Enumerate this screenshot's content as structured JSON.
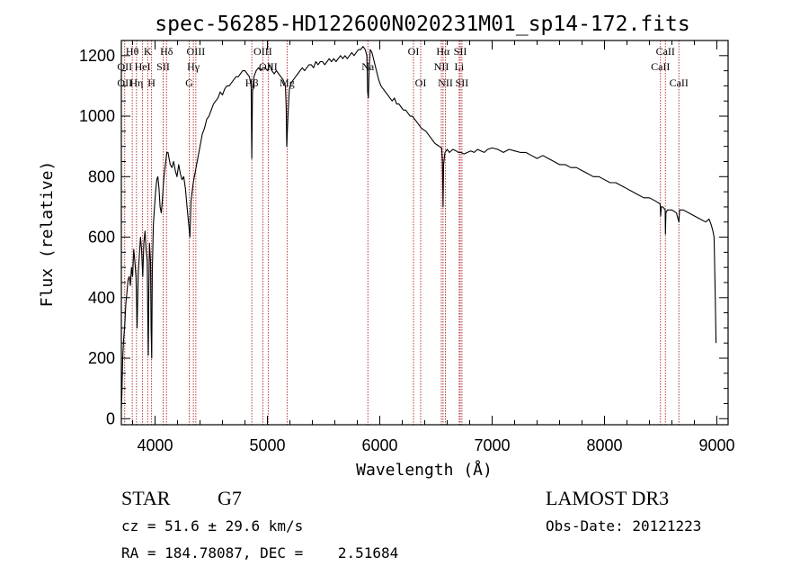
{
  "chart_data": {
    "type": "line",
    "title": "spec-56285-HD122600N020231M01_sp14-172.fits",
    "xlabel": "Wavelength (Å)",
    "ylabel": "Flux (relative)",
    "xlim": [
      3700,
      9100
    ],
    "ylim": [
      -20,
      1250
    ],
    "x_ticks": [
      4000,
      5000,
      6000,
      7000,
      8000,
      9000
    ],
    "y_ticks": [
      0,
      200,
      400,
      600,
      800,
      1000,
      1200
    ],
    "grid": false,
    "series": [
      {
        "color": "#000000",
        "points": [
          [
            3700,
            30
          ],
          [
            3705,
            80
          ],
          [
            3712,
            200
          ],
          [
            3720,
            260
          ],
          [
            3730,
            310
          ],
          [
            3740,
            380
          ],
          [
            3750,
            420
          ],
          [
            3760,
            460
          ],
          [
            3770,
            470
          ],
          [
            3780,
            440
          ],
          [
            3790,
            500
          ],
          [
            3800,
            470
          ],
          [
            3810,
            560
          ],
          [
            3820,
            520
          ],
          [
            3830,
            470
          ],
          [
            3840,
            300
          ],
          [
            3850,
            480
          ],
          [
            3860,
            540
          ],
          [
            3870,
            600
          ],
          [
            3880,
            560
          ],
          [
            3890,
            470
          ],
          [
            3900,
            580
          ],
          [
            3910,
            620
          ],
          [
            3920,
            560
          ],
          [
            3930,
            520
          ],
          [
            3935,
            350
          ],
          [
            3940,
            210
          ],
          [
            3945,
            420
          ],
          [
            3950,
            580
          ],
          [
            3960,
            520
          ],
          [
            3965,
            300
          ],
          [
            3970,
            200
          ],
          [
            3975,
            480
          ],
          [
            3985,
            640
          ],
          [
            3995,
            700
          ],
          [
            4005,
            750
          ],
          [
            4015,
            790
          ],
          [
            4025,
            800
          ],
          [
            4035,
            760
          ],
          [
            4045,
            700
          ],
          [
            4055,
            680
          ],
          [
            4065,
            720
          ],
          [
            4075,
            780
          ],
          [
            4085,
            820
          ],
          [
            4095,
            850
          ],
          [
            4105,
            880
          ],
          [
            4115,
            880
          ],
          [
            4125,
            860
          ],
          [
            4135,
            840
          ],
          [
            4150,
            830
          ],
          [
            4165,
            850
          ],
          [
            4180,
            820
          ],
          [
            4195,
            800
          ],
          [
            4210,
            840
          ],
          [
            4225,
            810
          ],
          [
            4240,
            790
          ],
          [
            4255,
            800
          ],
          [
            4270,
            760
          ],
          [
            4285,
            700
          ],
          [
            4300,
            640
          ],
          [
            4310,
            600
          ],
          [
            4320,
            720
          ],
          [
            4340,
            780
          ],
          [
            4360,
            820
          ],
          [
            4380,
            860
          ],
          [
            4400,
            900
          ],
          [
            4420,
            940
          ],
          [
            4440,
            960
          ],
          [
            4460,
            990
          ],
          [
            4480,
            1000
          ],
          [
            4500,
            1020
          ],
          [
            4520,
            1040
          ],
          [
            4540,
            1050
          ],
          [
            4560,
            1060
          ],
          [
            4580,
            1080
          ],
          [
            4600,
            1070
          ],
          [
            4620,
            1090
          ],
          [
            4640,
            1100
          ],
          [
            4660,
            1100
          ],
          [
            4680,
            1110
          ],
          [
            4700,
            1120
          ],
          [
            4720,
            1130
          ],
          [
            4740,
            1130
          ],
          [
            4760,
            1140
          ],
          [
            4780,
            1150
          ],
          [
            4800,
            1150
          ],
          [
            4820,
            1140
          ],
          [
            4840,
            1130
          ],
          [
            4855,
            1100
          ],
          [
            4861,
            860
          ],
          [
            4867,
            1080
          ],
          [
            4880,
            1130
          ],
          [
            4900,
            1150
          ],
          [
            4920,
            1160
          ],
          [
            4940,
            1150
          ],
          [
            4960,
            1160
          ],
          [
            4980,
            1160
          ],
          [
            5000,
            1150
          ],
          [
            5020,
            1170
          ],
          [
            5040,
            1150
          ],
          [
            5060,
            1140
          ],
          [
            5080,
            1150
          ],
          [
            5100,
            1140
          ],
          [
            5120,
            1130
          ],
          [
            5140,
            1120
          ],
          [
            5160,
            1100
          ],
          [
            5167,
            1030
          ],
          [
            5172,
            900
          ],
          [
            5178,
            960
          ],
          [
            5184,
            1010
          ],
          [
            5195,
            1090
          ],
          [
            5210,
            1110
          ],
          [
            5230,
            1120
          ],
          [
            5250,
            1130
          ],
          [
            5270,
            1140
          ],
          [
            5290,
            1150
          ],
          [
            5310,
            1160
          ],
          [
            5330,
            1150
          ],
          [
            5350,
            1160
          ],
          [
            5370,
            1170
          ],
          [
            5390,
            1170
          ],
          [
            5410,
            1160
          ],
          [
            5430,
            1180
          ],
          [
            5450,
            1170
          ],
          [
            5470,
            1180
          ],
          [
            5490,
            1180
          ],
          [
            5510,
            1170
          ],
          [
            5530,
            1180
          ],
          [
            5550,
            1190
          ],
          [
            5570,
            1180
          ],
          [
            5590,
            1190
          ],
          [
            5610,
            1180
          ],
          [
            5630,
            1190
          ],
          [
            5650,
            1200
          ],
          [
            5670,
            1190
          ],
          [
            5690,
            1200
          ],
          [
            5710,
            1190
          ],
          [
            5730,
            1200
          ],
          [
            5750,
            1210
          ],
          [
            5770,
            1200
          ],
          [
            5790,
            1210
          ],
          [
            5810,
            1220
          ],
          [
            5830,
            1220
          ],
          [
            5850,
            1230
          ],
          [
            5870,
            1220
          ],
          [
            5885,
            1200
          ],
          [
            5892,
            1080
          ],
          [
            5898,
            1060
          ],
          [
            5905,
            1150
          ],
          [
            5915,
            1220
          ],
          [
            5930,
            1210
          ],
          [
            5950,
            1180
          ],
          [
            5970,
            1150
          ],
          [
            5990,
            1120
          ],
          [
            6010,
            1100
          ],
          [
            6030,
            1090
          ],
          [
            6050,
            1080
          ],
          [
            6070,
            1070
          ],
          [
            6090,
            1060
          ],
          [
            6110,
            1050
          ],
          [
            6130,
            1060
          ],
          [
            6150,
            1040
          ],
          [
            6170,
            1040
          ],
          [
            6190,
            1030
          ],
          [
            6210,
            1020
          ],
          [
            6230,
            1020
          ],
          [
            6250,
            1010
          ],
          [
            6270,
            1000
          ],
          [
            6290,
            1000
          ],
          [
            6310,
            990
          ],
          [
            6330,
            980
          ],
          [
            6350,
            970
          ],
          [
            6370,
            960
          ],
          [
            6390,
            955
          ],
          [
            6410,
            950
          ],
          [
            6430,
            940
          ],
          [
            6450,
            930
          ],
          [
            6470,
            920
          ],
          [
            6490,
            910
          ],
          [
            6510,
            905
          ],
          [
            6530,
            900
          ],
          [
            6550,
            895
          ],
          [
            6558,
            850
          ],
          [
            6563,
            700
          ],
          [
            6568,
            840
          ],
          [
            6580,
            880
          ],
          [
            6600,
            890
          ],
          [
            6620,
            880
          ],
          [
            6650,
            890
          ],
          [
            6680,
            885
          ],
          [
            6700,
            880
          ],
          [
            6720,
            880
          ],
          [
            6750,
            875
          ],
          [
            6780,
            880
          ],
          [
            6810,
            885
          ],
          [
            6840,
            880
          ],
          [
            6870,
            890
          ],
          [
            6900,
            885
          ],
          [
            6930,
            880
          ],
          [
            6960,
            890
          ],
          [
            7000,
            895
          ],
          [
            7050,
            890
          ],
          [
            7100,
            880
          ],
          [
            7150,
            890
          ],
          [
            7200,
            885
          ],
          [
            7250,
            880
          ],
          [
            7300,
            880
          ],
          [
            7350,
            870
          ],
          [
            7400,
            860
          ],
          [
            7450,
            870
          ],
          [
            7500,
            860
          ],
          [
            7550,
            850
          ],
          [
            7600,
            840
          ],
          [
            7650,
            840
          ],
          [
            7700,
            830
          ],
          [
            7750,
            830
          ],
          [
            7800,
            820
          ],
          [
            7850,
            810
          ],
          [
            7900,
            800
          ],
          [
            7950,
            800
          ],
          [
            8000,
            790
          ],
          [
            8050,
            780
          ],
          [
            8100,
            780
          ],
          [
            8150,
            770
          ],
          [
            8200,
            760
          ],
          [
            8250,
            750
          ],
          [
            8300,
            740
          ],
          [
            8350,
            730
          ],
          [
            8400,
            730
          ],
          [
            8450,
            720
          ],
          [
            8495,
            710
          ],
          [
            8500,
            670
          ],
          [
            8505,
            700
          ],
          [
            8520,
            700
          ],
          [
            8540,
            690
          ],
          [
            8542,
            610
          ],
          [
            8546,
            680
          ],
          [
            8560,
            690
          ],
          [
            8600,
            690
          ],
          [
            8640,
            680
          ],
          [
            8662,
            650
          ],
          [
            8668,
            690
          ],
          [
            8700,
            690
          ],
          [
            8750,
            680
          ],
          [
            8800,
            670
          ],
          [
            8850,
            660
          ],
          [
            8900,
            650
          ],
          [
            8930,
            660
          ],
          [
            8950,
            640
          ],
          [
            8965,
            620
          ],
          [
            8975,
            600
          ],
          [
            8985,
            420
          ],
          [
            8993,
            250
          ]
        ]
      }
    ],
    "lines": [
      {
        "x": 3730,
        "labels": [
          "",
          "OII",
          "OII"
        ]
      },
      {
        "x": 3797,
        "labels": [
          "Hθ",
          "",
          ""
        ]
      },
      {
        "x": 3835,
        "labels": [
          "",
          "",
          "Hη"
        ]
      },
      {
        "x": 3889,
        "labels": [
          "",
          "HeI",
          ""
        ]
      },
      {
        "x": 3934,
        "labels": [
          "K",
          "",
          ""
        ]
      },
      {
        "x": 3969,
        "labels": [
          "",
          "",
          "H"
        ]
      },
      {
        "x": 4072,
        "labels": [
          "",
          "SII",
          ""
        ]
      },
      {
        "x": 4102,
        "labels": [
          "Hδ",
          "",
          ""
        ]
      },
      {
        "x": 4304,
        "labels": [
          "",
          "",
          "G"
        ]
      },
      {
        "x": 4341,
        "labels": [
          "",
          "Hγ",
          ""
        ]
      },
      {
        "x": 4363,
        "labels": [
          "OIII",
          "",
          ""
        ]
      },
      {
        "x": 4861,
        "labels": [
          "",
          "",
          "Hβ"
        ]
      },
      {
        "x": 4959,
        "labels": [
          "OIII",
          "",
          ""
        ]
      },
      {
        "x": 5007,
        "labels": [
          "",
          "OIII",
          ""
        ]
      },
      {
        "x": 5175,
        "labels": [
          "",
          "",
          "Mg"
        ]
      },
      {
        "x": 5894,
        "labels": [
          "",
          "Na",
          ""
        ]
      },
      {
        "x": 6300,
        "labels": [
          "OI",
          "",
          ""
        ]
      },
      {
        "x": 6364,
        "labels": [
          "",
          "",
          "OI"
        ]
      },
      {
        "x": 6548,
        "labels": [
          "",
          "NII",
          ""
        ]
      },
      {
        "x": 6563,
        "labels": [
          "Hα",
          "",
          ""
        ]
      },
      {
        "x": 6584,
        "labels": [
          "",
          "",
          "NII"
        ]
      },
      {
        "x": 6707,
        "labels": [
          "",
          "Li",
          ""
        ]
      },
      {
        "x": 6716,
        "labels": [
          "SII",
          "",
          ""
        ]
      },
      {
        "x": 6731,
        "labels": [
          "",
          "",
          "SII"
        ]
      },
      {
        "x": 8498,
        "labels": [
          "",
          "CaII",
          ""
        ]
      },
      {
        "x": 8542,
        "labels": [
          "CaII",
          "",
          ""
        ]
      },
      {
        "x": 8662,
        "labels": [
          "",
          "",
          "CaII"
        ]
      }
    ]
  },
  "info": {
    "class_label": "STAR",
    "subclass": "G7",
    "survey": "LAMOST DR3",
    "cz": "cz = 51.6 ± 29.6 km/s",
    "obs_date": "Obs-Date: 20121223",
    "radec": "RA = 184.78087, DEC =    2.51684"
  },
  "colors": {
    "spectrum": "#000000",
    "line_markers": "#b22222",
    "background": "#ffffff"
  }
}
